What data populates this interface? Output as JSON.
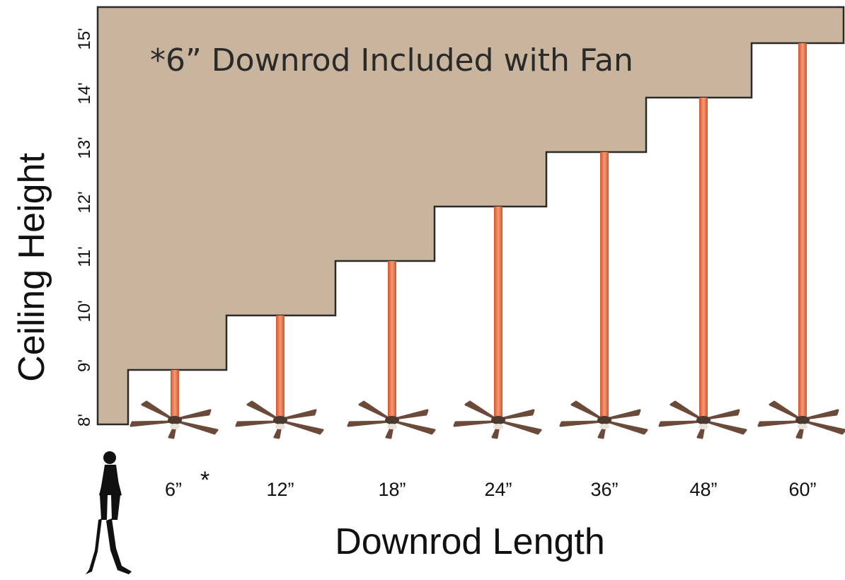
{
  "note": "*6” Downrod Included with Fan",
  "y_axis_title": "Ceiling Height",
  "x_axis_title": "Downrod Length",
  "colors": {
    "ceiling": "#c9b49d",
    "outline": "#2b2b2b",
    "rod": "#e8653a",
    "rod_highlight": "#f2916b",
    "blade": "#6b4a3a",
    "hub": "#4a3a30",
    "figure": "#111111"
  },
  "ceiling_ticks": [
    {
      "value": 8,
      "label": "8'"
    },
    {
      "value": 9,
      "label": "9'"
    },
    {
      "value": 10,
      "label": "10'"
    },
    {
      "value": 11,
      "label": "11'"
    },
    {
      "value": 12,
      "label": "12'"
    },
    {
      "value": 13,
      "label": "13'"
    },
    {
      "value": 14,
      "label": "14'"
    },
    {
      "value": 15,
      "label": "15'"
    }
  ],
  "downrods": [
    {
      "length_label": "6”",
      "ceiling_ft": 9,
      "included": true,
      "marker": "*"
    },
    {
      "length_label": "12”",
      "ceiling_ft": 10,
      "included": false
    },
    {
      "length_label": "18”",
      "ceiling_ft": 11,
      "included": false
    },
    {
      "length_label": "24”",
      "ceiling_ft": 12,
      "included": false
    },
    {
      "length_label": "36”",
      "ceiling_ft": 13,
      "included": false
    },
    {
      "length_label": "48”",
      "ceiling_ft": 14,
      "included": false
    },
    {
      "length_label": "60”",
      "ceiling_ft": 15,
      "included": false
    }
  ],
  "icons": {
    "fan": "ceiling-fan-icon",
    "person": "walking-person-icon"
  }
}
